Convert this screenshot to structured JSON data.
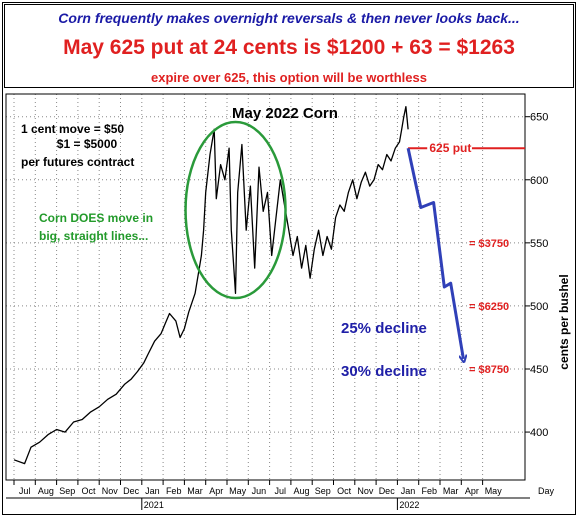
{
  "header": {
    "line1": "Corn frequently makes overnight reversals & then never looks back...",
    "line2": "May 625 put at 24 cents is $1200 + 63 = $1263",
    "line3": "expire over 625, this option will be worthless"
  },
  "chart_data": {
    "type": "line",
    "title": "May 2022 Corn",
    "ylabel": "cents per bushel",
    "xlabel": "Day",
    "ylim": [
      362,
      668
    ],
    "yticks": [
      400,
      450,
      500,
      550,
      600,
      650
    ],
    "months": [
      "Jul",
      "Aug",
      "Sep",
      "Oct",
      "Nov",
      "Dec",
      "Jan",
      "Feb",
      "Mar",
      "Apr",
      "May",
      "Jun",
      "Jul",
      "Aug",
      "Sep",
      "Oct",
      "Nov",
      "Dec",
      "Jan",
      "Feb",
      "Mar",
      "Apr",
      "May"
    ],
    "year_labels": [
      {
        "label": "2021",
        "month_index": 6
      },
      {
        "label": "2022",
        "month_index": 18
      }
    ],
    "series": [
      {
        "x": [
          0,
          0.5,
          0.8,
          1.2,
          1.6,
          2.0,
          2.4,
          2.8,
          3.2,
          3.6,
          4.0,
          4.4,
          4.8,
          5.2,
          5.5,
          5.8,
          6.1,
          6.3,
          6.6,
          6.9,
          7.1,
          7.3,
          7.6,
          7.8,
          8.0,
          8.2,
          8.5,
          8.8,
          8.9,
          9.0,
          9.2,
          9.4,
          9.5,
          9.7,
          9.9,
          10.1,
          10.2,
          10.4,
          10.5,
          10.7,
          10.9,
          11.1,
          11.3,
          11.5,
          11.7,
          11.9,
          12.1,
          12.3,
          12.5,
          12.7,
          12.9,
          13.1,
          13.3,
          13.5,
          13.7,
          13.9,
          14.1,
          14.3,
          14.5,
          14.7,
          14.9,
          15.1,
          15.3,
          15.5,
          15.7,
          15.9,
          16.1,
          16.3,
          16.5,
          16.7,
          16.9,
          17.1,
          17.3,
          17.5,
          17.7,
          17.9,
          18.1,
          18.2,
          18.3,
          18.4,
          18.5
        ],
        "values": [
          378,
          375,
          388,
          392,
          398,
          402,
          400,
          408,
          410,
          416,
          420,
          426,
          430,
          438,
          442,
          448,
          455,
          462,
          472,
          478,
          486,
          494,
          488,
          475,
          482,
          495,
          510,
          540,
          560,
          590,
          620,
          640,
          585,
          612,
          600,
          625,
          560,
          510,
          590,
          628,
          560,
          595,
          530,
          610,
          575,
          590,
          540,
          570,
          600,
          580,
          560,
          540,
          555,
          530,
          548,
          522,
          545,
          560,
          540,
          555,
          545,
          570,
          580,
          575,
          590,
          600,
          585,
          598,
          606,
          595,
          600,
          612,
          608,
          620,
          615,
          625,
          630,
          640,
          650,
          658,
          640
        ]
      }
    ],
    "annotations": {
      "move": [
        "1 cent move  = $50",
        "$1 = $5000",
        "per futures contract"
      ],
      "straight": [
        "Corn DOES move in",
        "big, straight lines..."
      ],
      "put_label": "625 put",
      "put_strike": 625,
      "declines": [
        "25% decline",
        "30% decline"
      ],
      "loss_labels": [
        {
          "label": "= $3750",
          "value": 550
        },
        {
          "label": "= $6250",
          "value": 500
        },
        {
          "label": "= $8750",
          "value": 450
        }
      ],
      "projection": {
        "x": [
          18.5,
          19.1,
          19.7,
          20.2,
          20.5,
          21.1
        ],
        "values": [
          625,
          578,
          582,
          515,
          518,
          458
        ]
      }
    },
    "grid": true,
    "colors": {
      "price": "#000000",
      "ellipse": "#2a9a3a",
      "put_line": "#e02020",
      "projection": "#3040b8",
      "text_red": "#e02020",
      "text_green": "#229a2a",
      "text_blue": "#2020a8"
    }
  }
}
